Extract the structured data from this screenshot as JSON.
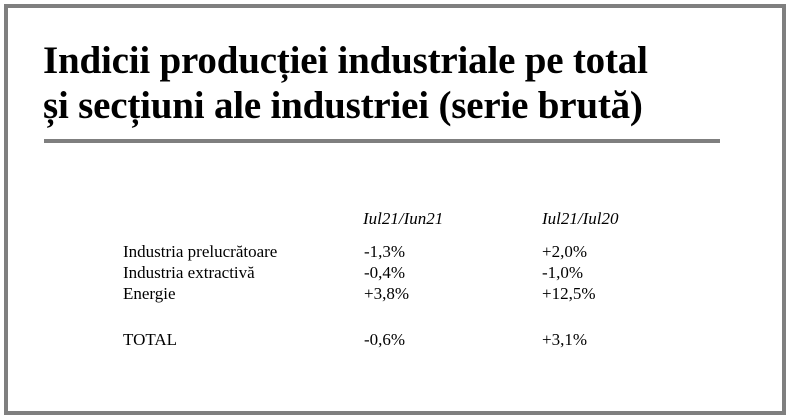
{
  "title": {
    "line1": "Indicii producției industriale pe total",
    "line2": "și secțiuni ale industriei (serie brută)"
  },
  "table": {
    "columns": [
      "Iul21/Iun21",
      "Iul21/Iul20"
    ],
    "rows": [
      {
        "label": "Industria prelucrătoare",
        "values": [
          "-1,3%",
          "+2,0%"
        ]
      },
      {
        "label": "Industria extractivă",
        "values": [
          "-0,4%",
          "-1,0%"
        ]
      },
      {
        "label": "Energie",
        "values": [
          "+3,8%",
          "+12,5%"
        ]
      },
      {
        "label": "TOTAL",
        "values": [
          "-0,6%",
          "+3,1%"
        ]
      }
    ]
  }
}
